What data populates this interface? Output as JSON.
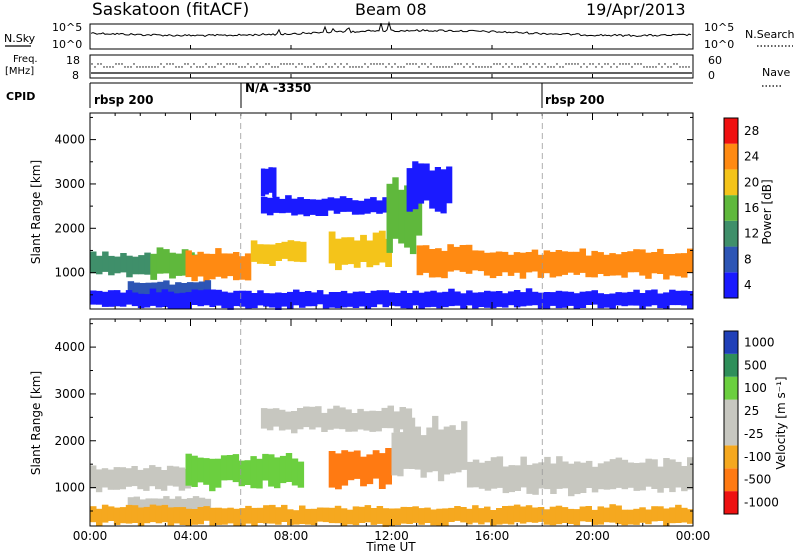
{
  "header": {
    "station": "Saskatoon (fitACF)",
    "beam": "Beam 08",
    "date": "19/Apr/2013"
  },
  "chart_data": [
    {
      "type": "line",
      "panel": "nsky",
      "left_label": "N.Sky",
      "right_label": "N.Search",
      "right_line_style": "dotted",
      "left_ticks": [
        "10^5",
        "10^0"
      ],
      "right_ticks": [
        "10^5",
        "10^0"
      ],
      "y_scale": "log",
      "ylim": [
        1,
        100000
      ]
    },
    {
      "type": "line",
      "panel": "freq",
      "left_label_1": "Freq.",
      "left_label_2": "[MHz]",
      "right_label": "Nave",
      "right_line_style": "dotted",
      "left_ticks": [
        "18",
        "8"
      ],
      "right_ticks": [
        "60",
        "0"
      ],
      "ylim": [
        8,
        18
      ],
      "right_ylim": [
        0,
        60
      ]
    },
    {
      "type": "table",
      "panel": "cpid",
      "label": "CPID",
      "segments": [
        {
          "start": "00:00",
          "text": "rbsp 200"
        },
        {
          "start": "06:00",
          "text": "N/A -3350"
        },
        {
          "start": "18:00",
          "text": "rbsp 200"
        }
      ]
    },
    {
      "type": "heatmap",
      "panel": "power",
      "ylabel": "Slant Range [km]",
      "yticks": [
        1000,
        2000,
        3000,
        4000
      ],
      "ylim": [
        180,
        4600
      ],
      "colorbar_label": "Power [dB]",
      "colorbar_ticks": [
        "4",
        "8",
        "12",
        "16",
        "20",
        "24",
        "28"
      ],
      "colorbar_colors": [
        "#1a1aff",
        "#2d55b5",
        "#3f8f6a",
        "#5fb83c",
        "#f4c41a",
        "#ff8a12",
        "#f01010"
      ],
      "bands": [
        {
          "t_start": 0.0,
          "t_end": 2.4,
          "range_lo": 950,
          "range_hi": 1450,
          "level": 12
        },
        {
          "t_start": 2.4,
          "t_end": 4.4,
          "range_lo": 900,
          "range_hi": 1500,
          "level": 16
        },
        {
          "t_start": 3.8,
          "t_end": 6.4,
          "range_lo": 850,
          "range_hi": 1500,
          "level": 27
        },
        {
          "t_start": 1.5,
          "t_end": 4.8,
          "range_lo": 450,
          "range_hi": 800,
          "level": 10
        },
        {
          "t_start": 6.4,
          "t_end": 8.6,
          "range_lo": 1200,
          "range_hi": 1700,
          "level": 22
        },
        {
          "t_start": 6.8,
          "t_end": 12.6,
          "range_lo": 2300,
          "range_hi": 2700,
          "level": 6
        },
        {
          "t_start": 6.8,
          "t_end": 7.4,
          "range_lo": 2700,
          "range_hi": 3400,
          "level": 7
        },
        {
          "t_start": 9.5,
          "t_end": 12.0,
          "range_lo": 1100,
          "range_hi": 1900,
          "level": 20
        },
        {
          "t_start": 11.8,
          "t_end": 13.2,
          "range_lo": 1500,
          "range_hi": 3100,
          "level": 18
        },
        {
          "t_start": 13.0,
          "t_end": 15.2,
          "range_lo": 900,
          "range_hi": 1600,
          "level": 24
        },
        {
          "t_start": 15.2,
          "t_end": 24.0,
          "range_lo": 900,
          "range_hi": 1500,
          "level": 26
        },
        {
          "t_start": 12.6,
          "t_end": 14.4,
          "range_lo": 2400,
          "range_hi": 3500,
          "level": 5
        },
        {
          "t_start": 0.0,
          "t_end": 24.0,
          "range_lo": 200,
          "range_hi": 600,
          "level": 6
        }
      ]
    },
    {
      "type": "heatmap",
      "panel": "velocity",
      "ylabel": "Slant Range [km]",
      "yticks": [
        1000,
        2000,
        3000,
        4000
      ],
      "ylim": [
        180,
        4600
      ],
      "xlabel": "Time UT",
      "xticks": [
        "00:00",
        "04:00",
        "08:00",
        "12:00",
        "16:00",
        "20:00",
        "00:00"
      ],
      "xlim": [
        0,
        24
      ],
      "colorbar_label": "Velocity [m s⁻¹]",
      "colorbar_ticks": [
        "-1000",
        "-500",
        "-100",
        "-25",
        "25",
        "100",
        "500",
        "1000"
      ],
      "colorbar_colors": [
        "#ee1111",
        "#ff7a12",
        "#f5a81f",
        "#c7c7c0",
        "#c7c7c0",
        "#6bcf3f",
        "#2f8f5a",
        "#2040b8"
      ],
      "bands": [
        {
          "t_start": 0.0,
          "t_end": 4.0,
          "range_lo": 950,
          "range_hi": 1450,
          "value": 0
        },
        {
          "t_start": 1.5,
          "t_end": 4.8,
          "range_lo": 450,
          "range_hi": 800,
          "value": 0
        },
        {
          "t_start": 3.8,
          "t_end": 8.5,
          "range_lo": 1000,
          "range_hi": 1700,
          "value": 300
        },
        {
          "t_start": 6.8,
          "t_end": 12.8,
          "range_lo": 2200,
          "range_hi": 2700,
          "value": 0
        },
        {
          "t_start": 9.5,
          "t_end": 12.0,
          "range_lo": 1000,
          "range_hi": 1800,
          "value": -300
        },
        {
          "t_start": 12.0,
          "t_end": 15.0,
          "range_lo": 1200,
          "range_hi": 2400,
          "value": 0
        },
        {
          "t_start": 15.0,
          "t_end": 24.0,
          "range_lo": 900,
          "range_hi": 1600,
          "value": 0
        },
        {
          "t_start": 0.0,
          "t_end": 24.0,
          "range_lo": 200,
          "range_hi": 600,
          "value": -60
        }
      ]
    }
  ]
}
